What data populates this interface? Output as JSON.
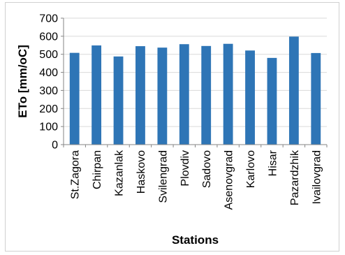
{
  "chart_data": {
    "type": "bar",
    "title": "",
    "xlabel": "Stations",
    "ylabel": "ETo [mm/oC]",
    "categories": [
      "St.Zagora",
      "Chirpan",
      "Kazanlak",
      "Haskovo",
      "Svilengrad",
      "Plovdiv",
      "Sadovo",
      "Asenovgrad",
      "Karlovo",
      "Hisar",
      "Pazardzhik",
      "Ivailovgrad"
    ],
    "values": [
      508,
      549,
      488,
      545,
      537,
      556,
      546,
      558,
      521,
      480,
      598,
      507
    ],
    "ylim": [
      0,
      700
    ],
    "yticks": [
      "0",
      "100",
      "200",
      "300",
      "400",
      "500",
      "600",
      "700"
    ],
    "grid": true,
    "legend": "none",
    "bar_color": "#2e75b6",
    "grid_color": "#d9d9d9",
    "axis_color": "#868686"
  }
}
